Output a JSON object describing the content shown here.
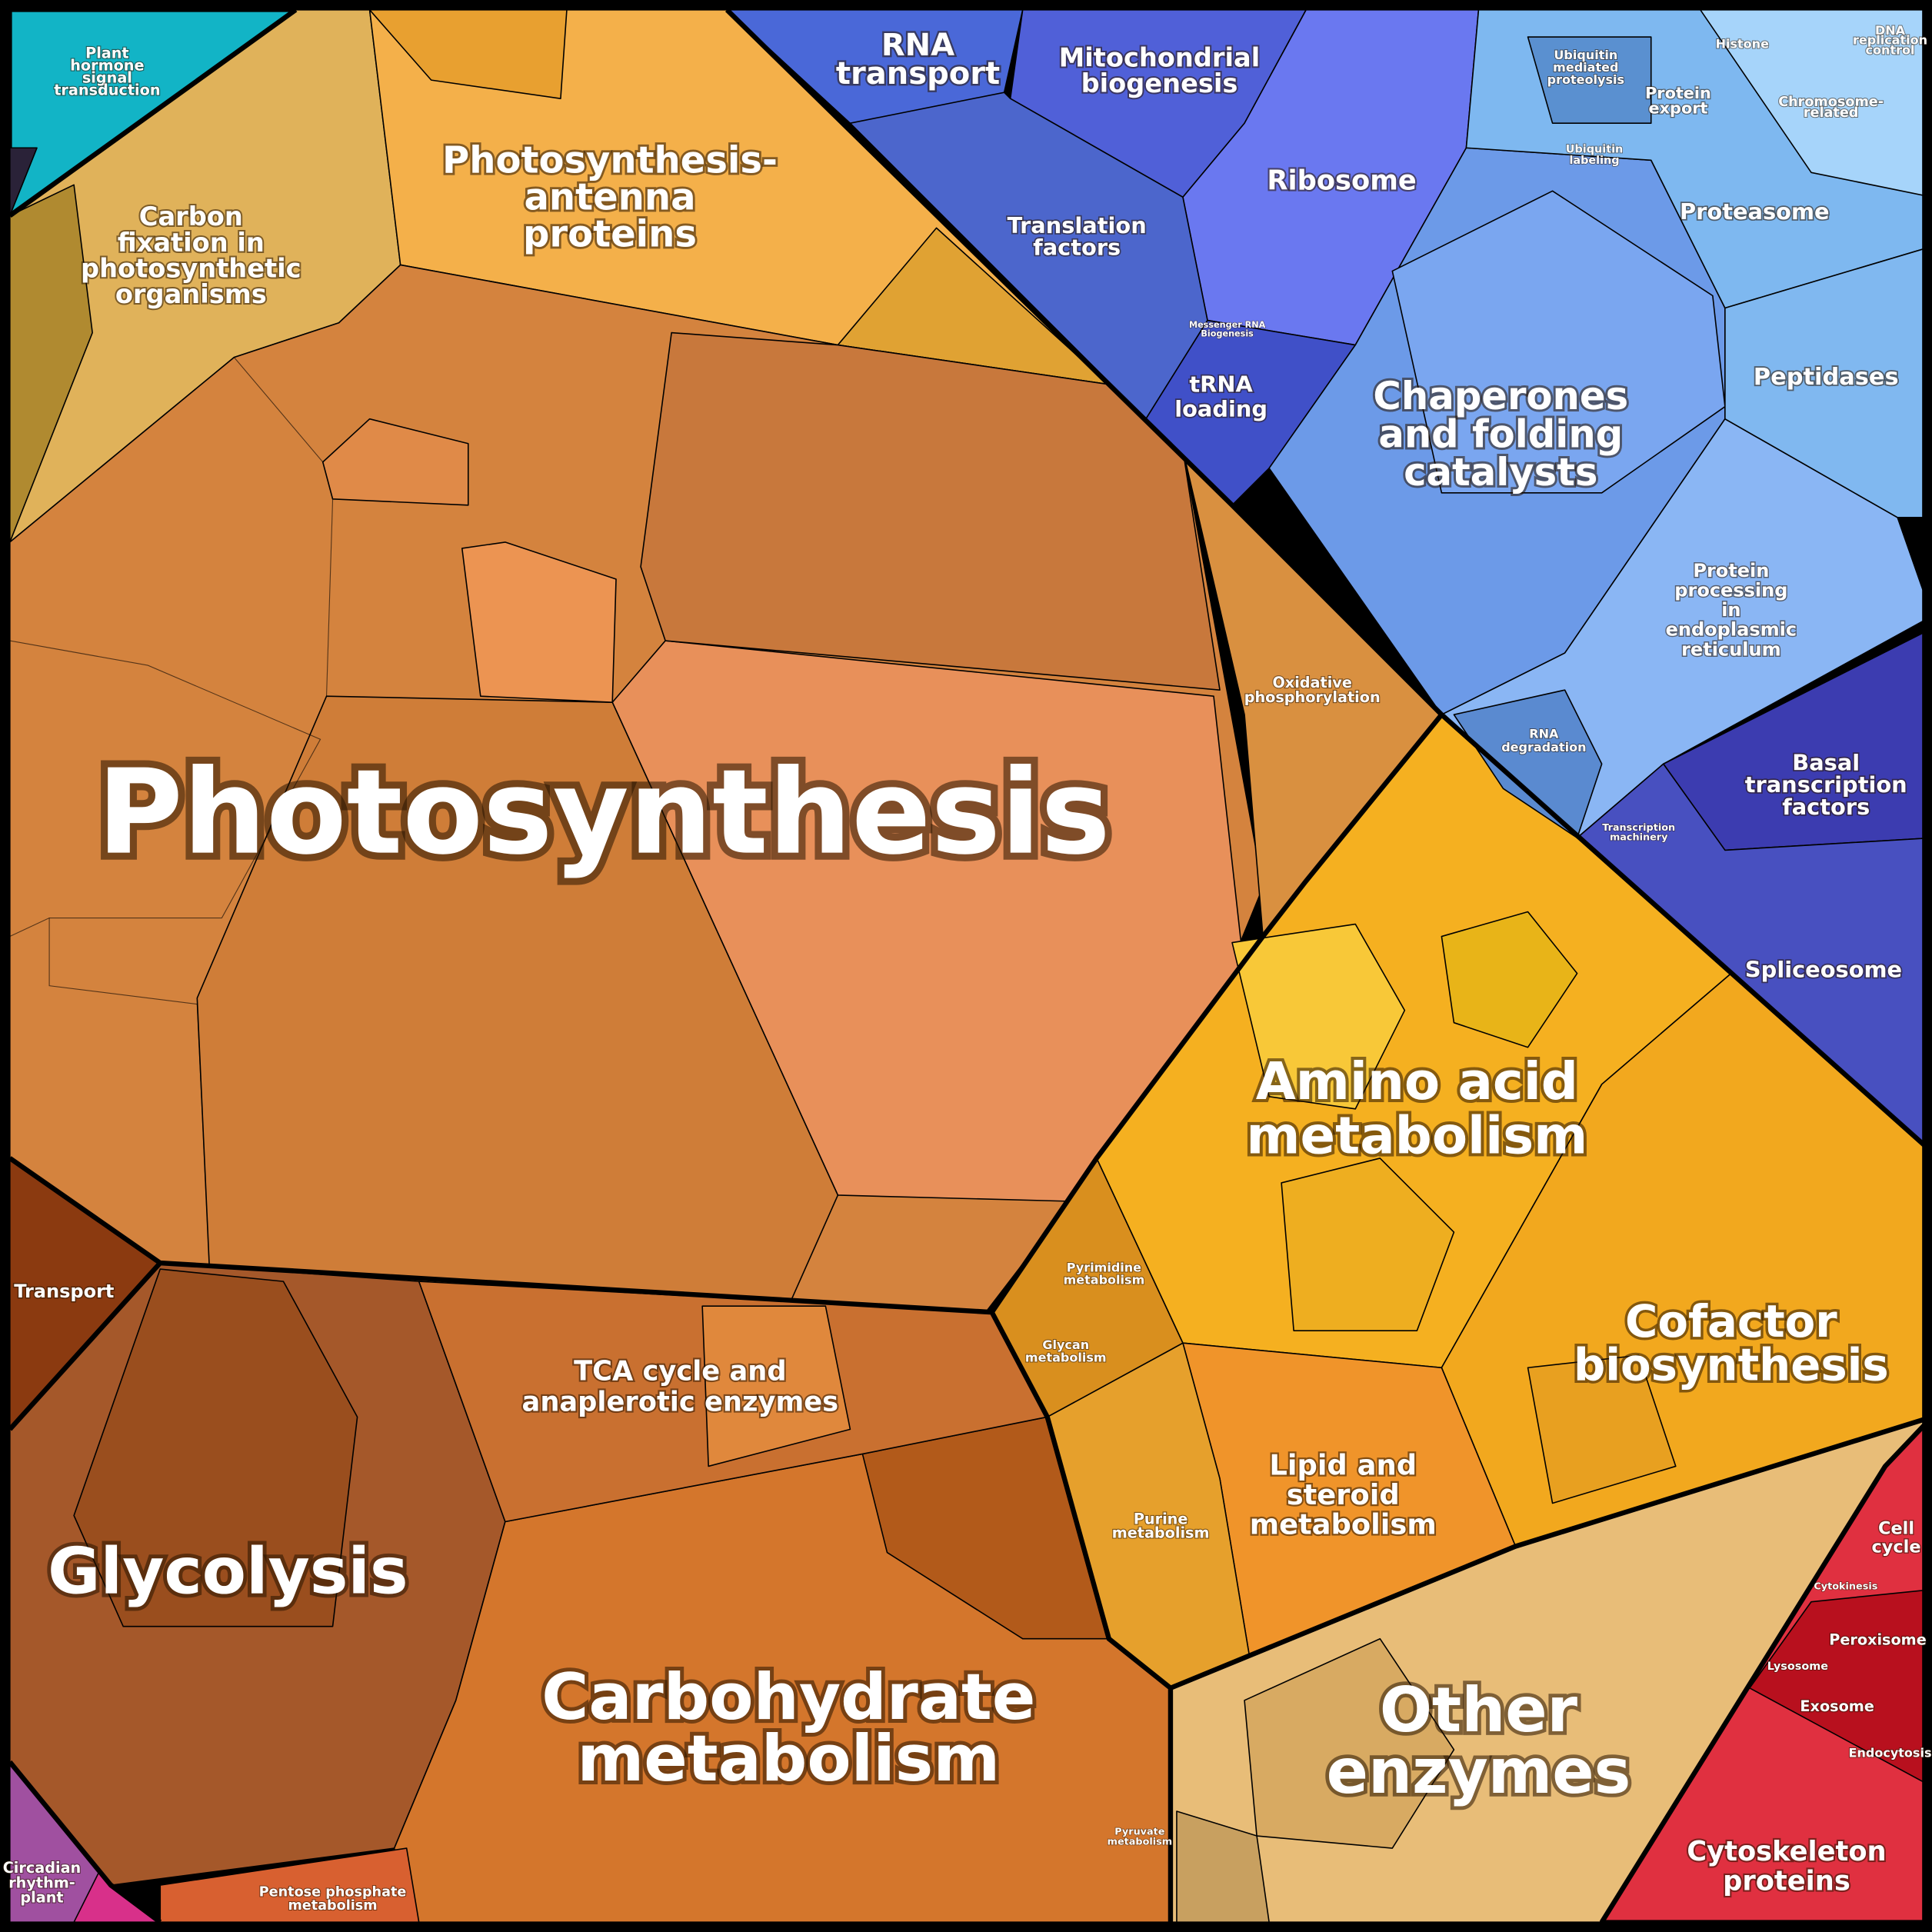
{
  "regions": [
    {
      "label": [
        "Photosynthesis"
      ]
    },
    {
      "label": [
        "Carbon",
        "fixation in",
        "photosynthetic",
        "organisms"
      ]
    },
    {
      "label": [
        "Photosynthesis-",
        "antenna",
        "proteins"
      ]
    },
    {
      "label": [
        "Oxidative",
        "phosphorylation"
      ]
    },
    {
      "label": [
        "Amino acid",
        "metabolism"
      ]
    },
    {
      "label": [
        "Cofactor",
        "biosynthesis"
      ]
    },
    {
      "label": [
        "Lipid and",
        "steroid",
        "metabolism"
      ]
    },
    {
      "label": [
        "Purine",
        "metabolism"
      ]
    },
    {
      "label": [
        "Pyrimidine",
        "metabolism"
      ]
    },
    {
      "label": [
        "Glycan",
        "metabolism"
      ]
    },
    {
      "label": [
        "Other",
        "enzymes"
      ]
    },
    {
      "label": [
        "Glycolysis"
      ]
    },
    {
      "label": [
        "Carbohydrate",
        "metabolism"
      ]
    },
    {
      "label": [
        "TCA cycle and",
        "anaplerotic enzymes"
      ]
    },
    {
      "label": [
        "Transport"
      ]
    },
    {
      "label": [
        "RNA",
        "transport"
      ]
    },
    {
      "label": [
        "Mitochondrial",
        "biogenesis"
      ]
    },
    {
      "label": [
        "Ribosome"
      ]
    },
    {
      "label": [
        "Translation",
        "factors"
      ]
    },
    {
      "label": [
        "tRNA",
        "loading"
      ]
    },
    {
      "label": [
        "Chaperones",
        "and folding",
        "catalysts"
      ]
    },
    {
      "label": [
        "Proteasome"
      ]
    },
    {
      "label": [
        "Peptidases"
      ]
    },
    {
      "label": [
        "Protein",
        "processing",
        "in",
        "endoplasmic",
        "reticulum"
      ]
    },
    {
      "label": [
        "RNA",
        "degradation"
      ]
    },
    {
      "label": [
        "Basal",
        "transcription",
        "factors"
      ]
    },
    {
      "label": [
        "Spliceosome"
      ]
    },
    {
      "label": [
        "Protein",
        "export"
      ]
    },
    {
      "label": [
        "Ubiquitin",
        "mediated",
        "proteolysis"
      ]
    },
    {
      "label": [
        "Ubiquitin",
        "labeling"
      ]
    },
    {
      "label": [
        "Histone"
      ]
    },
    {
      "label": [
        "DNA",
        "replication",
        "control"
      ]
    },
    {
      "label": [
        "Chromosome-",
        "related"
      ]
    },
    {
      "label": [
        "Cell",
        "cycle"
      ]
    },
    {
      "label": [
        "Peroxisome"
      ]
    },
    {
      "label": [
        "Lysosome"
      ]
    },
    {
      "label": [
        "Exosome"
      ]
    },
    {
      "label": [
        "Endocytosis"
      ]
    },
    {
      "label": [
        "Cytokinesis"
      ]
    },
    {
      "label": [
        "Cytoskeleton",
        "proteins"
      ]
    },
    {
      "label": [
        "Plant",
        "hormone",
        "signal",
        "transduction"
      ]
    },
    {
      "label": [
        "Circadian",
        "rhythm-",
        "plant"
      ]
    },
    {
      "label": [
        "Pentose phosphate",
        "metabolism"
      ]
    },
    {
      "label": [
        "Pyruvate",
        "metabolism"
      ]
    },
    {
      "label": [
        "Transcription",
        "machinery"
      ]
    },
    {
      "label": [
        "Messenger RNA",
        "Biogenesis"
      ]
    }
  ]
}
